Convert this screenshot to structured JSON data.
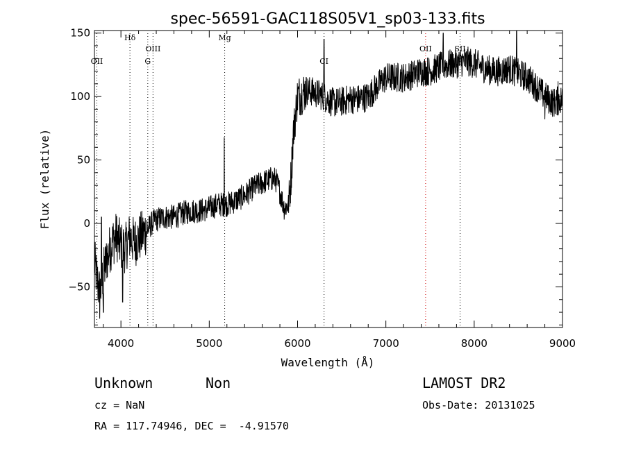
{
  "chart_data": {
    "type": "line",
    "title": "spec-56591-GAC118S05V1_sp03-133.fits",
    "xlabel": "Wavelength (Å)",
    "ylabel": "Flux (relative)",
    "xlim": [
      3700,
      9000
    ],
    "ylim": [
      -82,
      152
    ],
    "xticks": [
      4000,
      5000,
      6000,
      7000,
      8000,
      9000
    ],
    "yticks": [
      -50,
      0,
      50,
      100,
      150
    ],
    "grid": false,
    "lines": [
      {
        "label": "OII",
        "x": 3727,
        "color": "#000000"
      },
      {
        "label": "Hδ",
        "x": 4102,
        "color": "#000000"
      },
      {
        "label": "G",
        "x": 4304,
        "color": "#000000"
      },
      {
        "label": "OIII",
        "x": 4363,
        "color": "#000000"
      },
      {
        "label": "Mg",
        "x": 5175,
        "color": "#000000"
      },
      {
        "label": "CI",
        "x": 6300,
        "color": "#000000"
      },
      {
        "label": "OII",
        "x": 7450,
        "color": "#cc0000"
      },
      {
        "label": "SII",
        "x": 7840,
        "color": "#000000"
      }
    ],
    "anchors": [
      [
        3700,
        -30
      ],
      [
        3720,
        -40
      ],
      [
        3760,
        -55
      ],
      [
        3800,
        -40
      ],
      [
        3850,
        -25
      ],
      [
        3900,
        -15
      ],
      [
        3950,
        -10
      ],
      [
        4000,
        -18
      ],
      [
        4050,
        -20
      ],
      [
        4100,
        -10
      ],
      [
        4150,
        -15
      ],
      [
        4200,
        -12
      ],
      [
        4250,
        -8
      ],
      [
        4300,
        -5
      ],
      [
        4350,
        0
      ],
      [
        4400,
        3
      ],
      [
        4500,
        5
      ],
      [
        4600,
        5
      ],
      [
        4700,
        8
      ],
      [
        4800,
        10
      ],
      [
        4900,
        10
      ],
      [
        5000,
        12
      ],
      [
        5100,
        15
      ],
      [
        5200,
        15
      ],
      [
        5300,
        18
      ],
      [
        5400,
        22
      ],
      [
        5500,
        28
      ],
      [
        5600,
        32
      ],
      [
        5700,
        35
      ],
      [
        5750,
        35
      ],
      [
        5800,
        25
      ],
      [
        5850,
        12
      ],
      [
        5900,
        15
      ],
      [
        5930,
        40
      ],
      [
        5950,
        70
      ],
      [
        6000,
        100
      ],
      [
        6100,
        105
      ],
      [
        6200,
        103
      ],
      [
        6300,
        100
      ],
      [
        6400,
        95
      ],
      [
        6500,
        96
      ],
      [
        6600,
        98
      ],
      [
        6700,
        98
      ],
      [
        6800,
        100
      ],
      [
        6900,
        108
      ],
      [
        7000,
        115
      ],
      [
        7100,
        115
      ],
      [
        7200,
        115
      ],
      [
        7300,
        117
      ],
      [
        7400,
        120
      ],
      [
        7500,
        120
      ],
      [
        7600,
        123
      ],
      [
        7700,
        125
      ],
      [
        7800,
        126
      ],
      [
        7900,
        128
      ],
      [
        8000,
        126
      ],
      [
        8100,
        123
      ],
      [
        8200,
        120
      ],
      [
        8300,
        120
      ],
      [
        8400,
        122
      ],
      [
        8500,
        118
      ],
      [
        8600,
        115
      ],
      [
        8700,
        108
      ],
      [
        8800,
        100
      ],
      [
        8900,
        95
      ],
      [
        9000,
        98
      ]
    ],
    "spikes": [
      [
        3760,
        -75
      ],
      [
        3800,
        -70
      ],
      [
        3780,
        5
      ],
      [
        4020,
        -62
      ],
      [
        5170,
        68
      ],
      [
        6300,
        145
      ],
      [
        7650,
        150
      ],
      [
        7900,
        130
      ],
      [
        8480,
        152
      ],
      [
        8800,
        82
      ],
      [
        8950,
        112
      ]
    ]
  },
  "footer": {
    "object_class": "Unknown",
    "subclass": "Non",
    "survey": "LAMOST DR2",
    "cz": "cz = NaN",
    "obs_date": "Obs-Date: 20131025",
    "coords": "RA = 117.74946, DEC =  -4.91570"
  }
}
